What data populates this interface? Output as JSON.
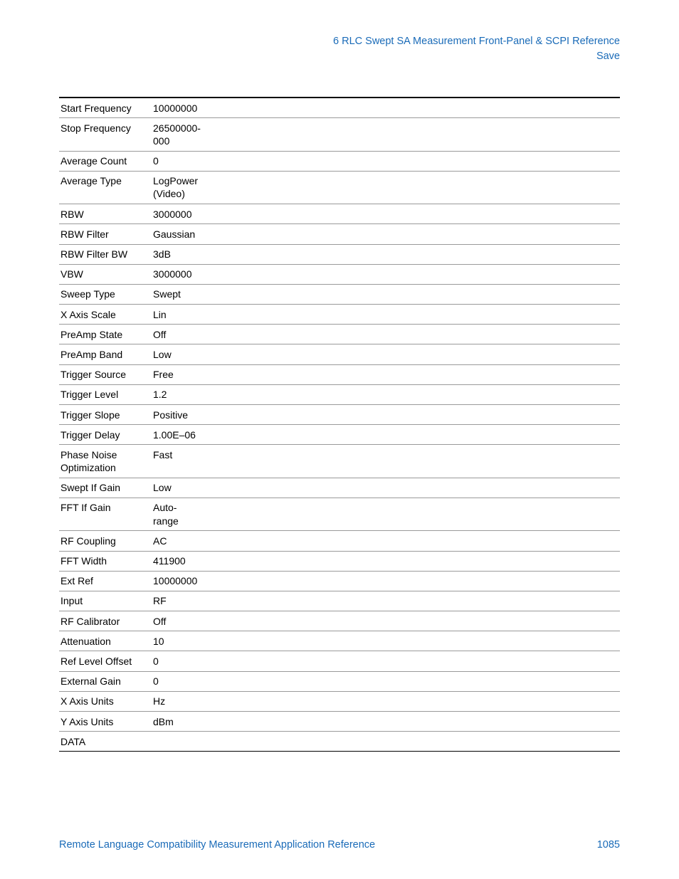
{
  "header": {
    "line1": "6  RLC Swept SA Measurement Front-Panel & SCPI Reference",
    "line2": "Save"
  },
  "table": {
    "rows": [
      {
        "param": "Start Frequency",
        "value": "10000000"
      },
      {
        "param": "Stop Frequency",
        "value": "26500000-000"
      },
      {
        "param": "Average Count",
        "value": "0"
      },
      {
        "param": "Average Type",
        "value": "LogPower (Video)"
      },
      {
        "param": "RBW",
        "value": "3000000"
      },
      {
        "param": "RBW Filter",
        "value": "Gaussian"
      },
      {
        "param": "RBW Filter BW",
        "value": "3dB"
      },
      {
        "param": "VBW",
        "value": "3000000"
      },
      {
        "param": "Sweep Type",
        "value": "Swept"
      },
      {
        "param": "X Axis Scale",
        "value": "Lin"
      },
      {
        "param": "PreAmp State",
        "value": "Off"
      },
      {
        "param": "PreAmp Band",
        "value": "Low"
      },
      {
        "param": "Trigger Source",
        "value": "Free"
      },
      {
        "param": "Trigger Level",
        "value": "1.2"
      },
      {
        "param": "Trigger Slope",
        "value": "Positive"
      },
      {
        "param": "Trigger Delay",
        "value": "1.00E–06"
      },
      {
        "param": "Phase Noise Optimization",
        "value": "Fast"
      },
      {
        "param": "Swept If Gain",
        "value": "Low"
      },
      {
        "param": "FFT If Gain",
        "value": "Auto-range"
      },
      {
        "param": "RF Coupling",
        "value": "AC"
      },
      {
        "param": "FFT Width",
        "value": "411900"
      },
      {
        "param": "Ext Ref",
        "value": "10000000"
      },
      {
        "param": "Input",
        "value": "RF"
      },
      {
        "param": "RF Calibrator",
        "value": "Off"
      },
      {
        "param": "Attenuation",
        "value": "10"
      },
      {
        "param": "Ref Level Offset",
        "value": "0"
      },
      {
        "param": "External Gain",
        "value": "0"
      },
      {
        "param": "X Axis Units",
        "value": "Hz"
      },
      {
        "param": "Y Axis Units",
        "value": "dBm"
      },
      {
        "param": "DATA",
        "value": ""
      }
    ]
  },
  "footer": {
    "title": "Remote Language Compatibility Measurement Application Reference",
    "page": "1085"
  },
  "colors": {
    "link": "#1a6bb8",
    "text": "#000000",
    "border_light": "#9a9a9a",
    "border_heavy": "#000000",
    "background": "#ffffff"
  }
}
